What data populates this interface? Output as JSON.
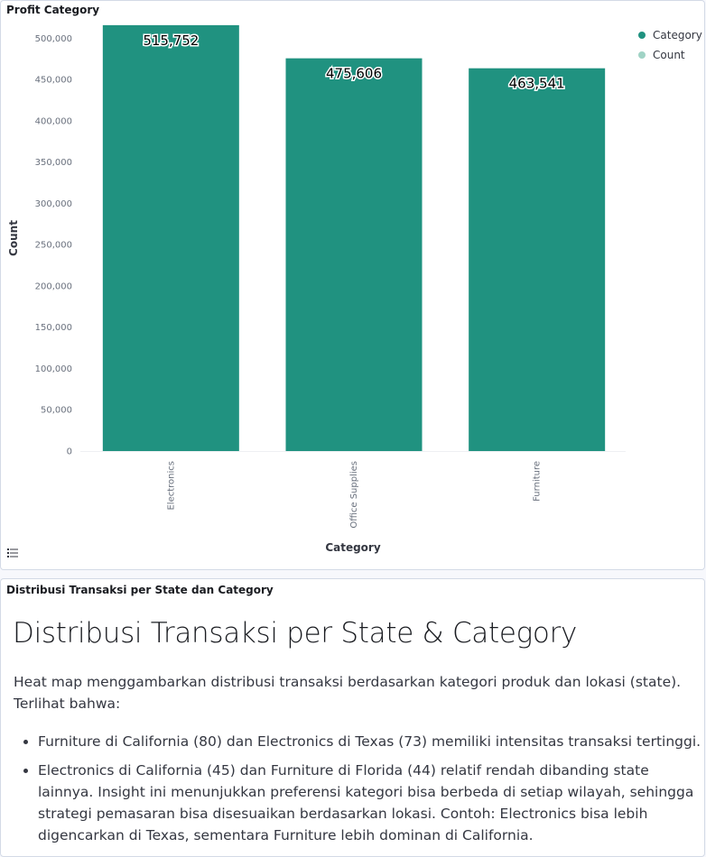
{
  "chart_panel": {
    "title": "Profit Category",
    "legend_toggle_icon": "list-icon"
  },
  "chart_data": {
    "type": "bar",
    "categories": [
      "Electronics",
      "Office Supplies",
      "Furniture"
    ],
    "values": [
      515752,
      475606,
      463541
    ],
    "value_labels": [
      "515,752",
      "475,606",
      "463,541"
    ],
    "xlabel": "Category",
    "ylabel": "Count",
    "ylim": [
      0,
      520000
    ],
    "yticks": [
      0,
      50000,
      100000,
      150000,
      200000,
      250000,
      300000,
      350000,
      400000,
      450000,
      500000
    ],
    "ytick_labels": [
      "0",
      "50,000",
      "100,000",
      "150,000",
      "200,000",
      "250,000",
      "300,000",
      "350,000",
      "400,000",
      "450,000",
      "500,000"
    ],
    "bar_color": "#209280",
    "legend": {
      "position": "top-right",
      "items": [
        {
          "label": "Category",
          "color": "#209280"
        },
        {
          "label": "Count",
          "color": "#a0d3c5"
        }
      ]
    },
    "grid": false
  },
  "text_panel": {
    "title": "Distribusi Transaksi per State dan Category",
    "heading": "Distribusi Transaksi per State & Category",
    "intro": "Heat map menggambarkan distribusi transaksi berdasarkan kategori produk dan lokasi (state). Terlihat bahwa:",
    "bullets": [
      "Furniture di California (80) dan Electronics di Texas (73) memiliki intensitas transaksi tertinggi.",
      "Electronics di California (45) dan Furniture di Florida (44) relatif rendah dibanding state lainnya. Insight ini menunjukkan preferensi kategori bisa berbeda di setiap wilayah, sehingga strategi pemasaran bisa disesuaikan berdasarkan lokasi. Contoh: Electronics bisa lebih digencarkan di Texas, sementara Furniture lebih dominan di California."
    ]
  }
}
